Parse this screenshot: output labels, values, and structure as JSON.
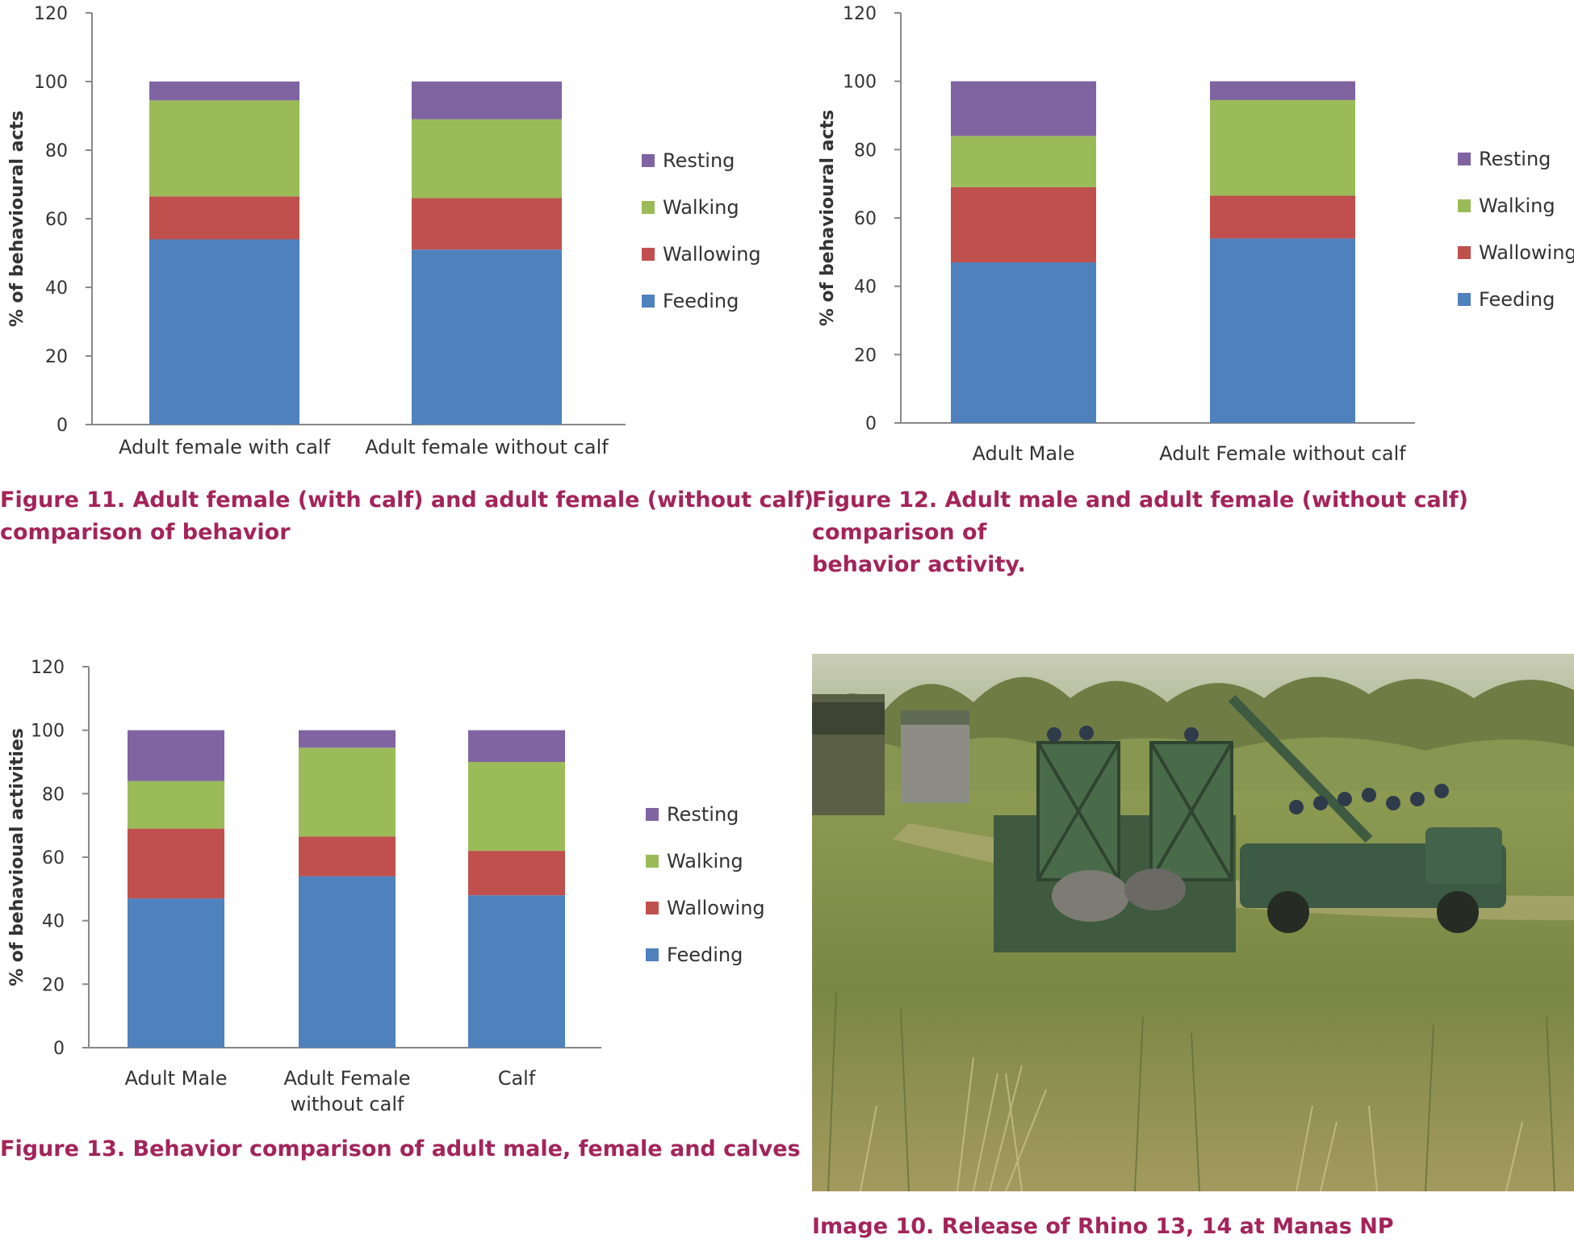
{
  "colors": {
    "Feeding": "#4f81bd",
    "Wallowing": "#c0504d",
    "Walking": "#9bbb59",
    "Resting": "#8064a2",
    "caption": "#a3245a",
    "axis": "#888888"
  },
  "chart_data": [
    {
      "id": "fig11",
      "type": "bar",
      "stacked": true,
      "title": "",
      "xlabel": "",
      "ylabel": "% of behavioural acts",
      "ylim": [
        0,
        120
      ],
      "yticks": [
        0,
        20,
        40,
        60,
        80,
        100,
        120
      ],
      "categories": [
        [
          "Adult female with calf"
        ],
        [
          "Adult female without calf"
        ]
      ],
      "series": [
        {
          "name": "Feeding",
          "values": [
            54,
            51
          ]
        },
        {
          "name": "Wallowing",
          "values": [
            12.5,
            15
          ]
        },
        {
          "name": "Walking",
          "values": [
            28,
            23
          ]
        },
        {
          "name": "Resting",
          "values": [
            5.5,
            11
          ]
        }
      ],
      "legend": [
        "Resting",
        "Walking",
        "Wallowing",
        "Feeding"
      ],
      "legend_position": "right"
    },
    {
      "id": "fig12",
      "type": "bar",
      "stacked": true,
      "title": "",
      "xlabel": "",
      "ylabel": "% of behavioural acts",
      "ylim": [
        0,
        120
      ],
      "yticks": [
        0,
        20,
        40,
        60,
        80,
        100,
        120
      ],
      "categories": [
        [
          "Adult Male"
        ],
        [
          "Adult Female without calf"
        ]
      ],
      "series": [
        {
          "name": "Feeding",
          "values": [
            47,
            54
          ]
        },
        {
          "name": "Wallowing",
          "values": [
            22,
            12.5
          ]
        },
        {
          "name": "Walking",
          "values": [
            15,
            28
          ]
        },
        {
          "name": "Resting",
          "values": [
            16,
            5.5
          ]
        }
      ],
      "legend": [
        "Resting",
        "Walking",
        "Wallowing",
        "Feeding"
      ],
      "legend_position": "right"
    },
    {
      "id": "fig13",
      "type": "bar",
      "stacked": true,
      "title": "",
      "xlabel": "",
      "ylabel": "% of behavioual activities",
      "ylim": [
        0,
        120
      ],
      "yticks": [
        0,
        20,
        40,
        60,
        80,
        100,
        120
      ],
      "categories": [
        [
          "Adult Male"
        ],
        [
          "Adult Female",
          "without calf"
        ],
        [
          "Calf"
        ]
      ],
      "series": [
        {
          "name": "Feeding",
          "values": [
            47,
            54,
            48
          ]
        },
        {
          "name": "Wallowing",
          "values": [
            22,
            12.5,
            14
          ]
        },
        {
          "name": "Walking",
          "values": [
            15,
            28,
            28
          ]
        },
        {
          "name": "Resting",
          "values": [
            16,
            5.5,
            10
          ]
        }
      ],
      "legend": [
        "Resting",
        "Walking",
        "Wallowing",
        "Feeding"
      ],
      "legend_position": "right"
    }
  ],
  "captions": {
    "fig11_line1": "Figure 11. Adult female (with calf) and adult female (without calf)",
    "fig11_line2": "comparison of behavior",
    "fig12_line1": "Figure 12. Adult male and adult female (without calf) comparison of",
    "fig12_line2": "behavior activity.",
    "fig13": "Figure 13. Behavior comparison of adult male, female and calves",
    "image10": "Image 10. Release of Rhino 13, 14 at Manas NP"
  }
}
